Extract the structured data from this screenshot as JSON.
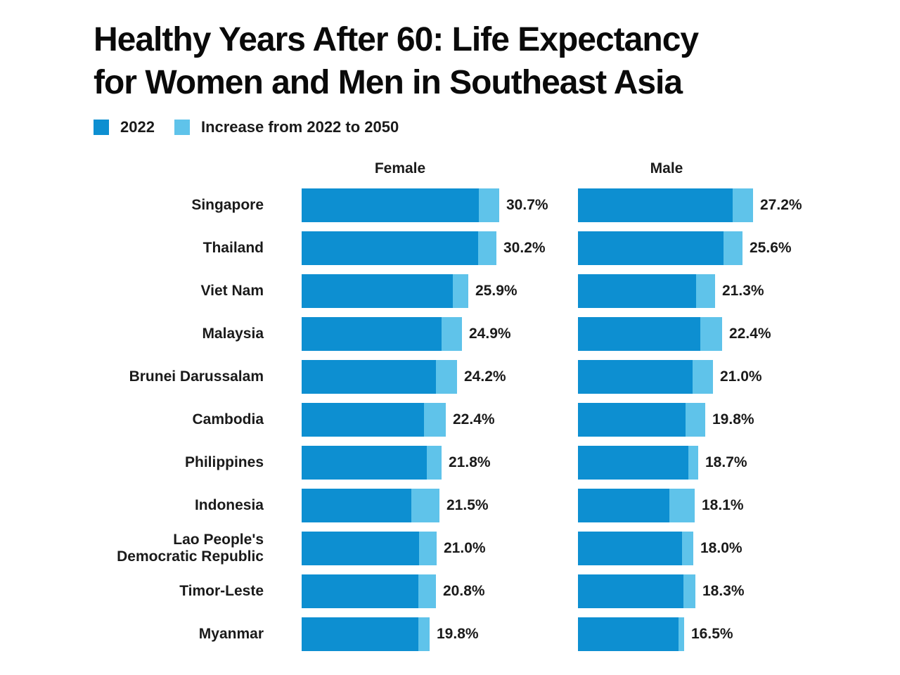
{
  "title": {
    "line1": "Healthy Years After 60: Life Expectancy",
    "line2": "for Women and Men in Southeast Asia"
  },
  "legend": {
    "items": [
      {
        "label": "2022",
        "color": "#0d8fd1"
      },
      {
        "label": "Increase from 2022 to 2050",
        "color": "#5fc3ea"
      }
    ]
  },
  "chart_data": {
    "type": "bar",
    "orientation": "horizontal",
    "unit": "percent",
    "group_headers": [
      "Female",
      "Male"
    ],
    "categories": [
      "Singapore",
      "Thailand",
      "Viet Nam",
      "Malaysia",
      "Brunei Darussalam",
      "Cambodia",
      "Philippines",
      "Indonesia",
      "Lao People's\nDemocratic Republic",
      "Timor-Leste",
      "Myanmar"
    ],
    "series": [
      {
        "name": "Female",
        "labels": [
          "30.7%",
          "30.2%",
          "25.9%",
          "24.9%",
          "24.2%",
          "22.4%",
          "21.8%",
          "21.5%",
          "21.0%",
          "20.8%",
          "19.8%"
        ],
        "values_2050": [
          30.7,
          30.2,
          25.9,
          24.9,
          24.2,
          22.4,
          21.8,
          21.5,
          21.0,
          20.8,
          19.8
        ],
        "values_2022_est": [
          27.5,
          27.4,
          23.5,
          21.7,
          20.9,
          19.0,
          19.5,
          17.1,
          18.3,
          18.1,
          18.1
        ]
      },
      {
        "name": "Male",
        "labels": [
          "27.2%",
          "25.6%",
          "21.3%",
          "22.4%",
          "21.0%",
          "19.8%",
          "18.7%",
          "18.1%",
          "18.0%",
          "18.3%",
          "16.5%"
        ],
        "values_2050": [
          27.2,
          25.6,
          21.3,
          22.4,
          21.0,
          19.8,
          18.7,
          18.1,
          18.0,
          18.3,
          16.5
        ],
        "values_2022_est": [
          24.0,
          22.6,
          18.4,
          19.0,
          17.8,
          16.7,
          17.2,
          14.2,
          16.2,
          16.4,
          15.6
        ]
      }
    ],
    "colors": {
      "bar_2022": "#0d8fd1",
      "bar_increase": "#5fc3ea",
      "text": "#1a1a1a",
      "background": "#ffffff"
    },
    "legend_entries": [
      "2022",
      "Increase from 2022 to 2050"
    ],
    "legend_position": "top-left",
    "grid": false,
    "value_label_shows": "2050 total"
  }
}
